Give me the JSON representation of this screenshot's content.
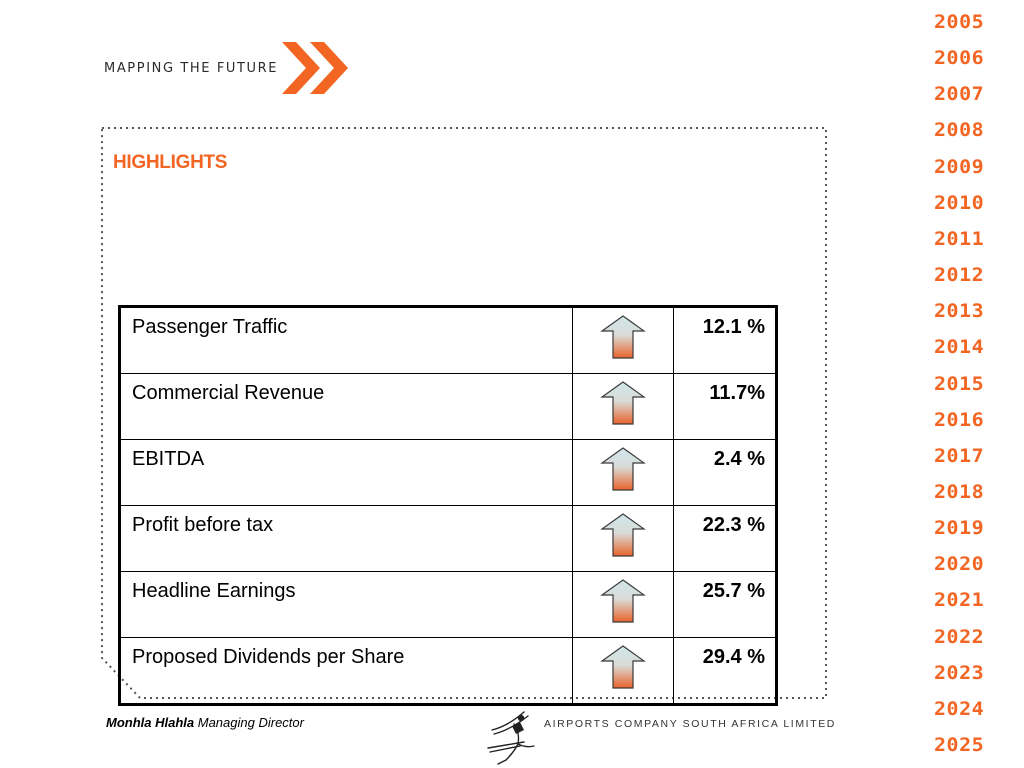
{
  "header": {
    "tagline": "MAPPING THE FUTURE",
    "chevron_icon": "double-chevron-right-icon"
  },
  "slide": {
    "title": "HIGHLIGHTS"
  },
  "highlights": {
    "rows": [
      {
        "label": "Passenger Traffic",
        "trend": "up",
        "value": "12.1 %"
      },
      {
        "label": "Commercial Revenue",
        "trend": "up",
        "value": "11.7%"
      },
      {
        "label": "EBITDA",
        "trend": "up",
        "value": "2.4 %"
      },
      {
        "label": "Profit before tax",
        "trend": "up",
        "value": "22.3 %"
      },
      {
        "label": "Headline Earnings",
        "trend": "up",
        "value": "25.7 %"
      },
      {
        "label": "Proposed Dividends per Share",
        "trend": "up",
        "value": "29.4 %"
      }
    ]
  },
  "years": [
    "2005",
    "2006",
    "2007",
    "2008",
    "2009",
    "2010",
    "2011",
    "2012",
    "2013",
    "2014",
    "2015",
    "2016",
    "2017",
    "2018",
    "2019",
    "2020",
    "2021",
    "2022",
    "2023",
    "2024",
    "2025"
  ],
  "footer": {
    "presenter_name": "Monhla Hlahla",
    "presenter_role": "Managing Director",
    "company": "AIRPORTS COMPANY SOUTH AFRICA LIMITED",
    "logo_icon": "acsa-figure-logo-icon"
  },
  "colors": {
    "accent": "#f26522",
    "arrow_top": "#cfe6ea",
    "arrow_bottom": "#e8632b"
  }
}
